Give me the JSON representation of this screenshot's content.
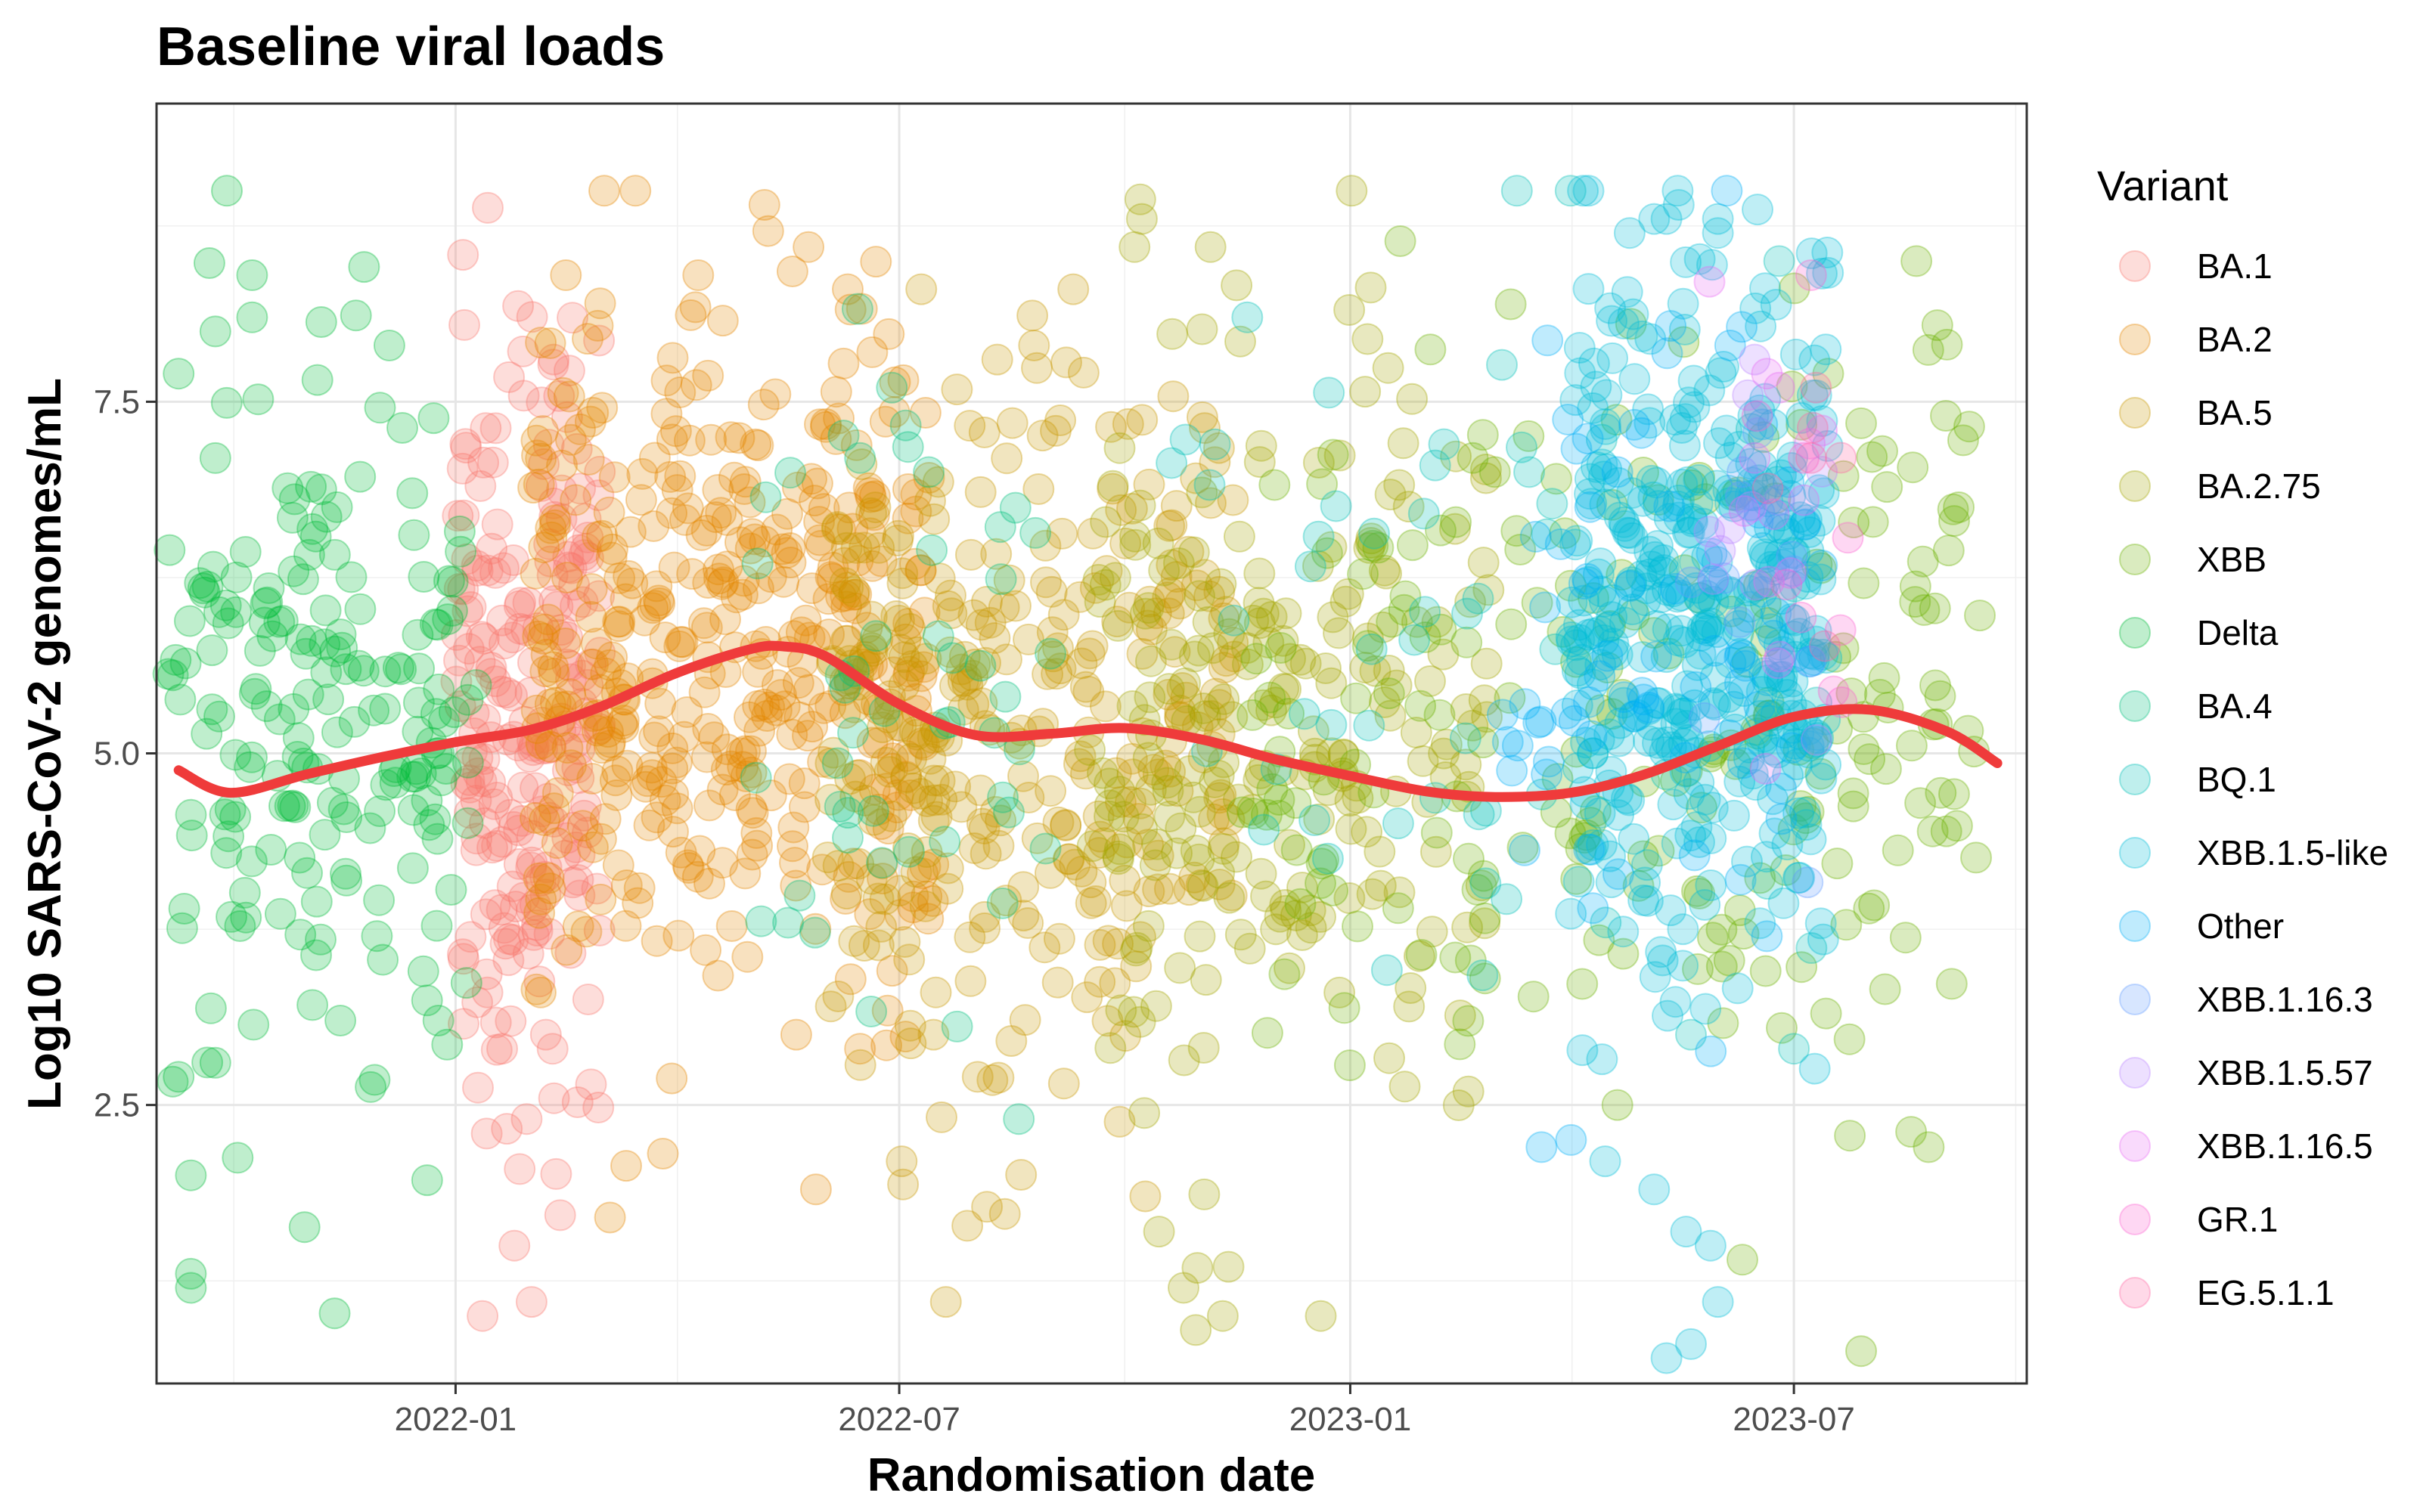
{
  "chart_data": {
    "type": "scatter",
    "title": "Baseline viral loads",
    "xlabel": "Randomisation date",
    "ylabel": "Log10 SARS-CoV-2 genomes/mL",
    "xlim": [
      "2021-09-01",
      "2023-10-04"
    ],
    "ylim": [
      0.52,
      9.62
    ],
    "x_ticks": [
      "2022-01-01",
      "2022-07-01",
      "2023-01-01",
      "2023-07-01"
    ],
    "x_tick_labels": [
      "2022-01",
      "2022-07",
      "2023-01",
      "2023-07"
    ],
    "y_ticks": [
      2.5,
      5.0,
      7.5
    ],
    "y_tick_labels": [
      "2.5",
      "5.0",
      "7.5"
    ],
    "grid": true,
    "legend": {
      "title": "Variant",
      "position": "right"
    },
    "point_alpha": 0.25,
    "series": [
      {
        "name": "BA.1",
        "color": "#F8766D",
        "x_range": [
          "2022-01-01",
          "2022-03-01"
        ],
        "y_center": 5.2,
        "y_spread": 1.3,
        "n": 220,
        "points": [
          [
            "2022-01-05",
            7.2
          ],
          [
            "2022-01-10",
            6.3
          ],
          [
            "2022-01-14",
            3.3
          ],
          [
            "2022-01-20",
            2.9
          ],
          [
            "2022-01-25",
            1.5
          ],
          [
            "2022-02-01",
            1.1
          ],
          [
            "2022-01-12",
            1.0
          ],
          [
            "2022-02-10",
            7.8
          ],
          [
            "2022-02-05",
            6.9
          ],
          [
            "2022-01-30",
            2.4
          ],
          [
            "2022-02-20",
            4.1
          ]
        ]
      },
      {
        "name": "BA.2",
        "color": "#E58700",
        "x_range": [
          "2022-02-01",
          "2022-07-15"
        ],
        "y_center": 5.8,
        "y_spread": 1.2,
        "n": 420,
        "points": [
          [
            "2022-05-07",
            8.9
          ],
          [
            "2022-02-15",
            8.4
          ],
          [
            "2022-04-10",
            8.4
          ],
          [
            "2022-05-25",
            8.6
          ],
          [
            "2022-06-10",
            8.3
          ],
          [
            "2022-03-01",
            8.2
          ],
          [
            "2022-05-20",
            3.0
          ],
          [
            "2022-05-28",
            1.9
          ],
          [
            "2022-06-15",
            2.9
          ],
          [
            "2022-03-05",
            1.7
          ]
        ]
      },
      {
        "name": "BA.5",
        "color": "#C99800",
        "x_range": [
          "2022-06-01",
          "2022-11-15"
        ],
        "y_center": 5.2,
        "y_spread": 1.2,
        "n": 330,
        "points": [
          [
            "2022-07-02",
            2.1
          ],
          [
            "2022-07-20",
            1.1
          ],
          [
            "2022-08-10",
            7.8
          ],
          [
            "2022-07-10",
            8.3
          ],
          [
            "2022-08-25",
            7.9
          ],
          [
            "2022-09-10",
            8.3
          ],
          [
            "2022-07-15",
            3.0
          ],
          [
            "2022-08-02",
            2.7
          ]
        ]
      },
      {
        "name": "BA.2.75",
        "color": "#A3A500",
        "x_range": [
          "2022-09-15",
          "2023-03-01"
        ],
        "y_center": 5.3,
        "y_spread": 1.3,
        "n": 230,
        "points": [
          [
            "2022-10-08",
            8.8
          ],
          [
            "2022-10-05",
            8.6
          ],
          [
            "2022-11-05",
            8.6
          ],
          [
            "2022-10-15",
            1.6
          ],
          [
            "2022-10-30",
            0.9
          ],
          [
            "2022-11-10",
            1.0
          ],
          [
            "2022-12-20",
            1.0
          ],
          [
            "2022-10-25",
            1.2
          ],
          [
            "2023-01-15",
            6.3
          ],
          [
            "2023-01-10",
            4.0
          ],
          [
            "2023-01-25",
            3.2
          ],
          [
            "2023-02-05",
            4.3
          ]
        ]
      },
      {
        "name": "XBB",
        "color": "#6BB100",
        "x_range": [
          "2022-11-15",
          "2023-09-15"
        ],
        "y_center": 5.3,
        "y_spread": 1.3,
        "n": 230,
        "points": [
          [
            "2023-08-20",
            8.5
          ],
          [
            "2023-08-25",
            2.2
          ],
          [
            "2023-06-10",
            1.4
          ],
          [
            "2023-07-15",
            7.7
          ],
          [
            "2023-09-01",
            7.4
          ],
          [
            "2023-04-20",
            2.5
          ],
          [
            "2023-03-01",
            7.0
          ],
          [
            "2023-02-20",
            7.1
          ],
          [
            "2023-02-25",
            3.4
          ]
        ]
      },
      {
        "name": "Delta",
        "color": "#00BA38",
        "x_range": [
          "2021-09-05",
          "2022-01-10"
        ],
        "y_center": 5.3,
        "y_spread": 1.3,
        "n": 190,
        "points": [
          [
            "2021-09-10",
            7.7
          ],
          [
            "2021-10-10",
            8.4
          ],
          [
            "2021-10-10",
            8.1
          ],
          [
            "2021-09-25",
            8.0
          ],
          [
            "2021-12-05",
            7.9
          ],
          [
            "2021-09-15",
            1.3
          ],
          [
            "2021-09-15",
            1.2
          ],
          [
            "2021-09-15",
            2.0
          ],
          [
            "2021-09-10",
            2.7
          ],
          [
            "2021-09-25",
            2.8
          ],
          [
            "2021-11-15",
            3.1
          ],
          [
            "2021-12-25",
            3.1
          ]
        ]
      },
      {
        "name": "BA.4",
        "color": "#00BF7D",
        "x_range": [
          "2022-05-01",
          "2022-09-01"
        ],
        "y_center": 5.5,
        "y_spread": 1.1,
        "n": 45,
        "points": [
          [
            "2022-06-28",
            7.6
          ],
          [
            "2022-06-15",
            7.1
          ],
          [
            "2022-06-10",
            4.4
          ],
          [
            "2022-07-05",
            4.3
          ],
          [
            "2022-06-25",
            5.3
          ]
        ]
      },
      {
        "name": "BQ.1",
        "color": "#00C0B8",
        "x_range": [
          "2022-10-15",
          "2023-07-15"
        ],
        "y_center": 5.6,
        "y_spread": 1.3,
        "n": 60,
        "points": [
          [
            "2022-11-20",
            8.1
          ],
          [
            "2023-06-25",
            8.5
          ],
          [
            "2023-03-15",
            7.0
          ],
          [
            "2023-04-10",
            5.0
          ],
          [
            "2023-05-20",
            3.0
          ],
          [
            "2023-07-01",
            2.9
          ]
        ]
      },
      {
        "name": "XBB.1.5-like",
        "color": "#00BCD8",
        "x_range": [
          "2023-04-01",
          "2023-07-15"
        ],
        "y_center": 5.9,
        "y_spread": 1.3,
        "n": 380,
        "points": [
          [
            "2023-04-25",
            8.7
          ],
          [
            "2023-05-05",
            8.8
          ],
          [
            "2023-05-10",
            8.8
          ],
          [
            "2023-05-15",
            8.9
          ],
          [
            "2023-05-31",
            8.8
          ],
          [
            "2023-05-31",
            8.7
          ],
          [
            "2023-05-10",
            0.7
          ],
          [
            "2023-05-20",
            0.8
          ],
          [
            "2023-05-31",
            1.1
          ],
          [
            "2023-05-28",
            1.5
          ],
          [
            "2023-05-18",
            1.6
          ],
          [
            "2023-05-05",
            1.9
          ],
          [
            "2023-04-15",
            2.1
          ]
        ]
      },
      {
        "name": "Other",
        "color": "#00B0F6",
        "x_range": [
          "2023-03-01",
          "2023-07-15"
        ],
        "y_center": 5.7,
        "y_spread": 1.3,
        "n": 70,
        "points": [
          [
            "2023-04-20",
            7.0
          ],
          [
            "2023-04-10",
            3.9
          ],
          [
            "2023-06-05",
            7.9
          ],
          [
            "2023-03-20",
            2.2
          ],
          [
            "2023-06-20",
            3.7
          ]
        ]
      },
      {
        "name": "XBB.1.16.3",
        "color": "#619CFF",
        "x_range": [
          "2023-05-15",
          "2023-07-15"
        ],
        "y_center": 6.3,
        "y_spread": 0.9,
        "n": 10,
        "points": [
          [
            "2023-06-10",
            7.0
          ],
          [
            "2023-06-25",
            6.8
          ]
        ]
      },
      {
        "name": "XBB.1.5.57",
        "color": "#B983FF",
        "x_range": [
          "2023-05-20",
          "2023-07-15"
        ],
        "y_center": 6.5,
        "y_spread": 0.8,
        "n": 8,
        "points": [
          [
            "2023-06-15",
            7.8
          ],
          [
            "2023-06-05",
            6.6
          ]
        ]
      },
      {
        "name": "XBB.1.16.5",
        "color": "#E76BF3",
        "x_range": [
          "2023-05-25",
          "2023-07-20"
        ],
        "y_center": 6.8,
        "y_spread": 0.8,
        "n": 10,
        "points": [
          [
            "2023-06-20",
            7.7
          ],
          [
            "2023-06-25",
            7.6
          ],
          [
            "2023-07-05",
            6.8
          ],
          [
            "2023-06-15",
            7.1
          ]
        ]
      },
      {
        "name": "GR.1",
        "color": "#FD61D1",
        "x_range": [
          "2023-06-10",
          "2023-08-01"
        ],
        "y_center": 6.8,
        "y_spread": 0.8,
        "n": 6,
        "points": [
          [
            "2023-07-08",
            8.4
          ],
          [
            "2023-07-05",
            7.1
          ],
          [
            "2023-06-28",
            6.2
          ]
        ]
      },
      {
        "name": "EG.5.1.1",
        "color": "#FF67A4",
        "x_range": [
          "2023-06-20",
          "2023-08-01"
        ],
        "y_center": 7.2,
        "y_spread": 0.6,
        "n": 4,
        "points": [
          [
            "2023-07-10",
            7.6
          ],
          [
            "2023-07-08",
            7.1
          ]
        ]
      }
    ],
    "trend": {
      "color": "#EF3B3B",
      "points": [
        [
          "2021-09-10",
          4.88
        ],
        [
          "2021-10-01",
          4.72
        ],
        [
          "2021-11-01",
          4.85
        ],
        [
          "2021-12-01",
          4.97
        ],
        [
          "2022-01-01",
          5.08
        ],
        [
          "2022-02-01",
          5.17
        ],
        [
          "2022-03-01",
          5.33
        ],
        [
          "2022-04-01",
          5.57
        ],
        [
          "2022-05-01",
          5.74
        ],
        [
          "2022-05-15",
          5.76
        ],
        [
          "2022-06-01",
          5.69
        ],
        [
          "2022-07-01",
          5.35
        ],
        [
          "2022-08-01",
          5.13
        ],
        [
          "2022-09-01",
          5.14
        ],
        [
          "2022-10-01",
          5.18
        ],
        [
          "2022-11-01",
          5.1
        ],
        [
          "2022-12-01",
          4.96
        ],
        [
          "2023-01-01",
          4.84
        ],
        [
          "2023-02-01",
          4.73
        ],
        [
          "2023-03-01",
          4.69
        ],
        [
          "2023-04-01",
          4.72
        ],
        [
          "2023-05-01",
          4.85
        ],
        [
          "2023-06-01",
          5.06
        ],
        [
          "2023-07-01",
          5.26
        ],
        [
          "2023-08-01",
          5.31
        ],
        [
          "2023-09-01",
          5.16
        ],
        [
          "2023-09-22",
          4.93
        ]
      ]
    }
  }
}
